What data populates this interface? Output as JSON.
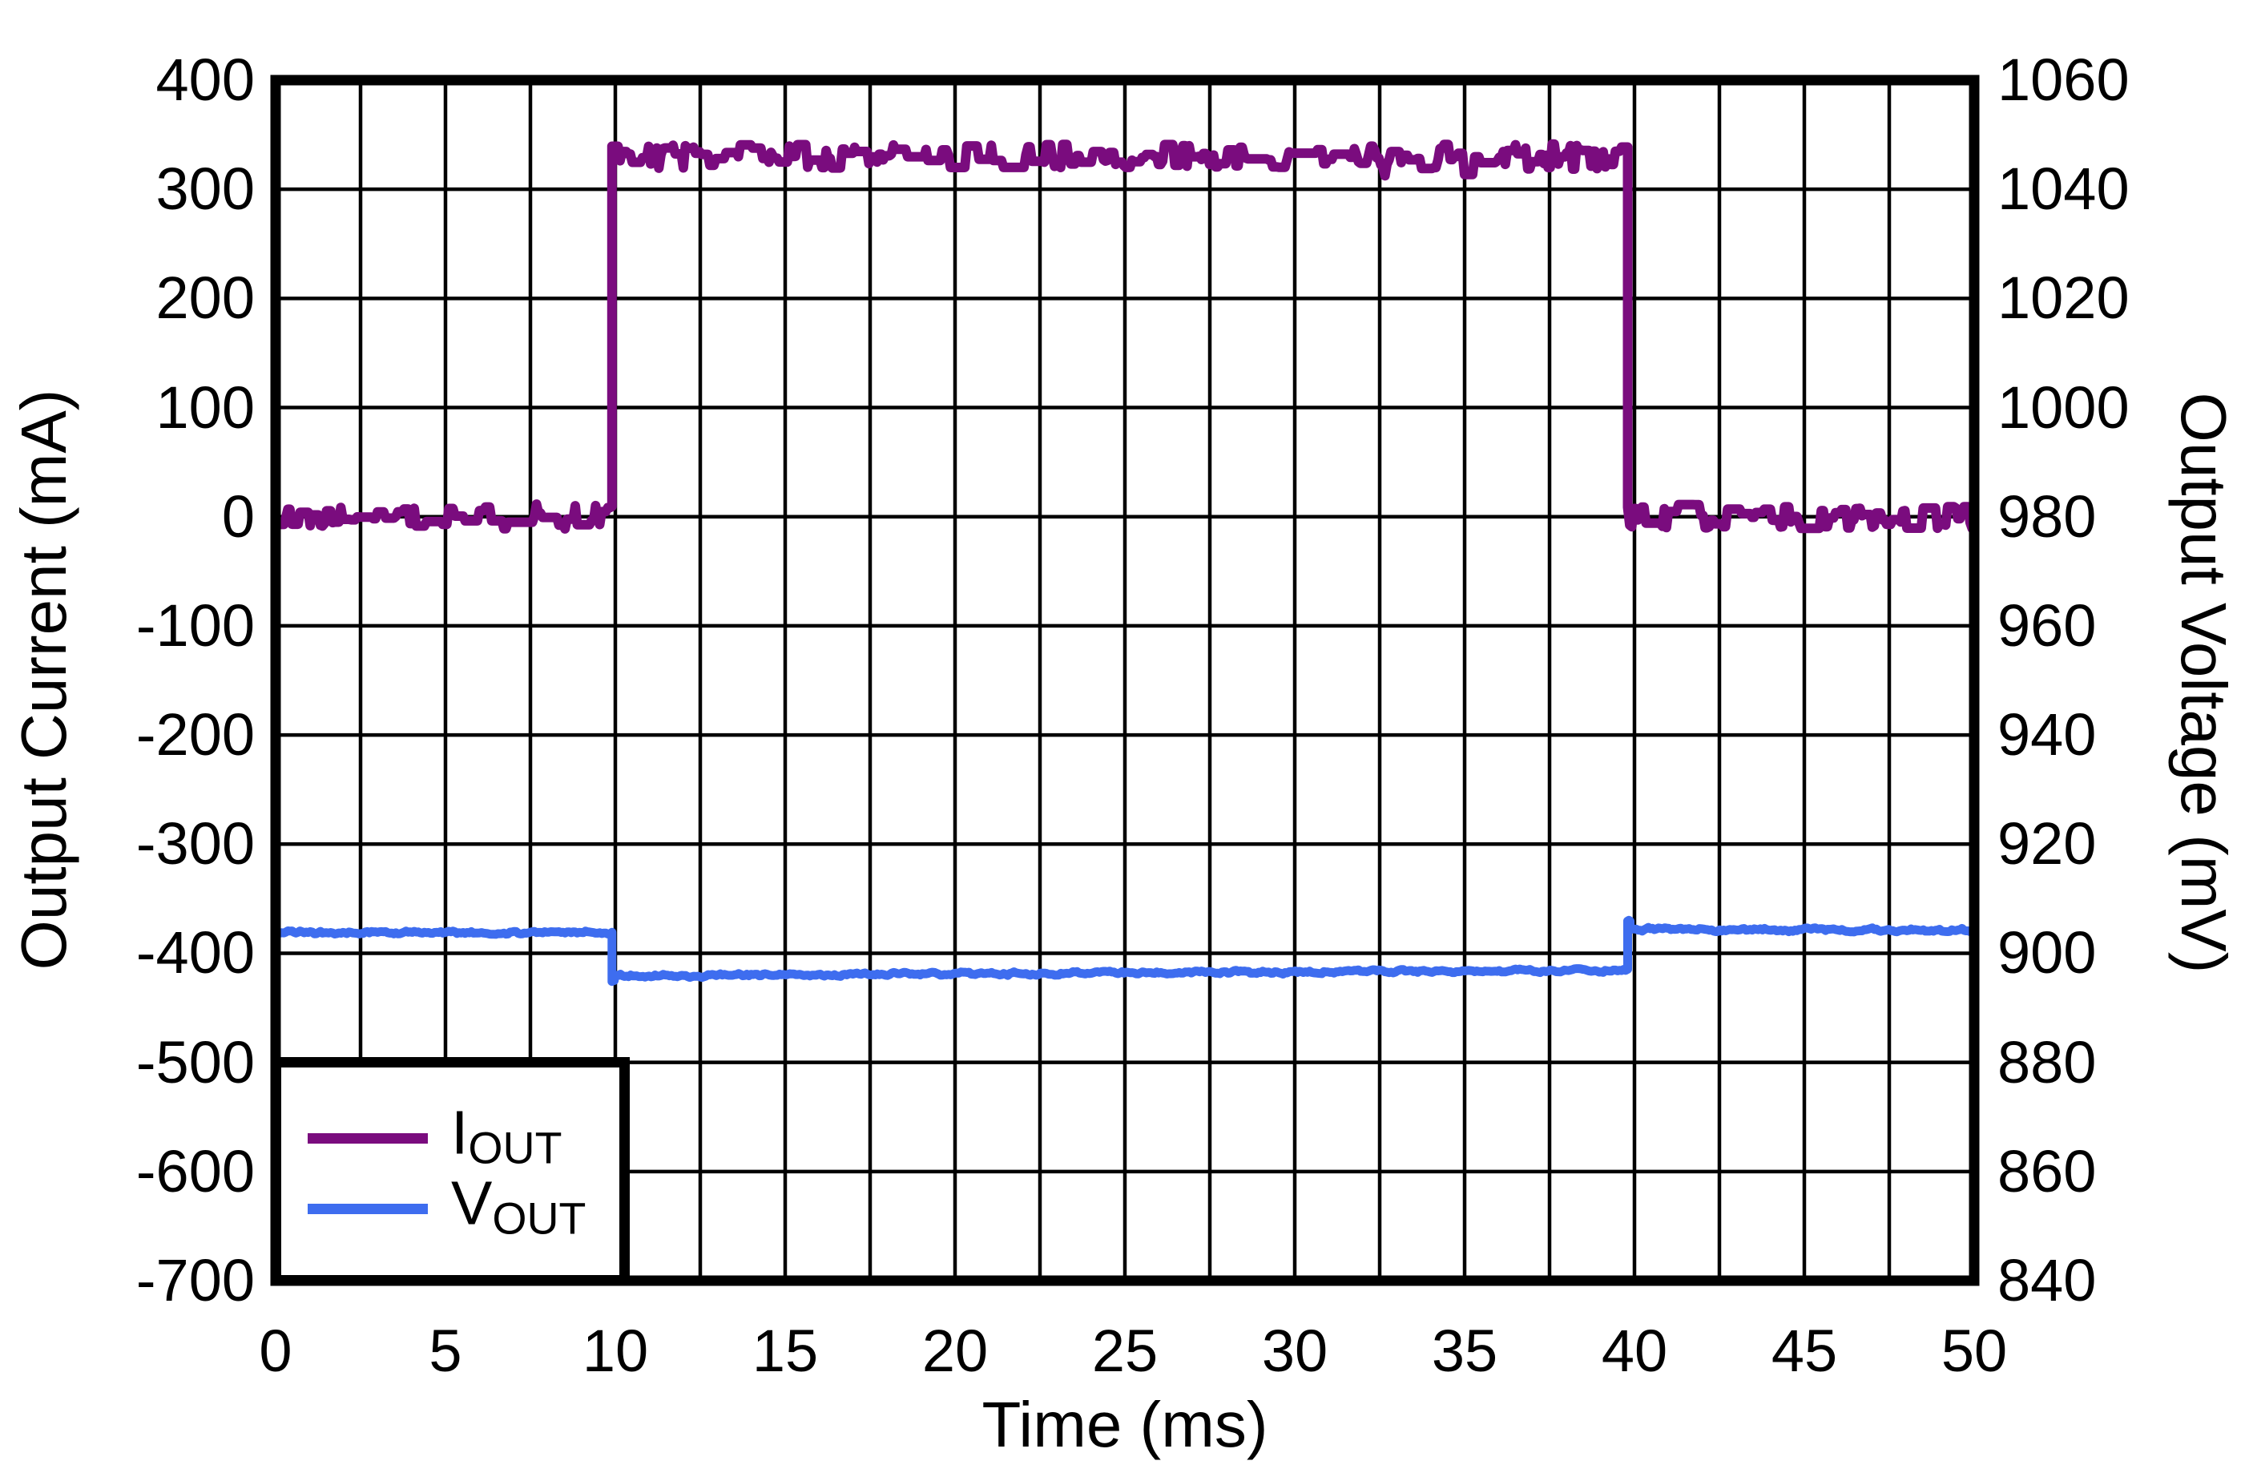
{
  "chart_data": {
    "type": "line",
    "title": "",
    "background_color": "#ffffff",
    "grid": {
      "on": true,
      "line_color": "#000000",
      "minor_x_step_ms": 2.5,
      "major_y_step_left_mA": 100
    },
    "x_axis": {
      "label": "Time (ms)",
      "min": 0,
      "max": 50,
      "tick_step": 5,
      "ticks": [
        "0",
        "5",
        "10",
        "15",
        "20",
        "25",
        "30",
        "35",
        "40",
        "45",
        "50"
      ]
    },
    "y_left_axis": {
      "label": "Output Current (mA)",
      "min": -700,
      "max": 400,
      "tick_step": 100,
      "ticks": [
        "400",
        "300",
        "200",
        "100",
        "0",
        "-100",
        "-200",
        "-300",
        "-400",
        "-500",
        "-600",
        "-700"
      ]
    },
    "y_right_axis": {
      "label": "Output Voltage (mV)",
      "min": 840,
      "max": 1060,
      "tick_step": 20,
      "ticks": [
        "1060",
        "1040",
        "1020",
        "1000",
        "980",
        "960",
        "940",
        "920",
        "900",
        "880",
        "860",
        "840"
      ]
    },
    "series": [
      {
        "name": "IOUT",
        "legend_main": "I",
        "legend_sub": "OUT",
        "axis": "left",
        "color": "#7A0C7E",
        "stroke_px": 12,
        "noise_amplitude": 11.5,
        "noise_style": "blocky",
        "segments": [
          {
            "t0": 0,
            "t1": 9.9,
            "v0": 0,
            "v1": 0
          },
          {
            "t0": 9.9,
            "t1": 39.8,
            "v0": 330,
            "v1": 330
          },
          {
            "t0": 39.8,
            "t1": 50,
            "v0": 0,
            "v1": 0
          }
        ]
      },
      {
        "name": "VOUT",
        "legend_main": "V",
        "legend_sub": "OUT",
        "axis": "right",
        "color": "#3E6DEF",
        "stroke_px": 11,
        "noise_amplitude": 0.45,
        "noise_style": "smooth",
        "segments": [
          {
            "t0": 0,
            "t1": 9.9,
            "v0": 903.8,
            "v1": 903.8
          },
          {
            "t0": 9.9,
            "t1": 9.97,
            "v0": 894.9,
            "v1": 894.9
          },
          {
            "t0": 9.97,
            "t1": 39.8,
            "v0": 895.9,
            "v1": 896.9
          },
          {
            "t0": 39.8,
            "t1": 39.87,
            "v0": 905.8,
            "v1": 905.8
          },
          {
            "t0": 39.87,
            "t1": 50,
            "v0": 904.4,
            "v1": 904.2
          }
        ]
      }
    ],
    "legend": {
      "position": "bottom-left",
      "border_color": "#000000",
      "background": "#ffffff"
    },
    "frame_color": "#000000"
  }
}
